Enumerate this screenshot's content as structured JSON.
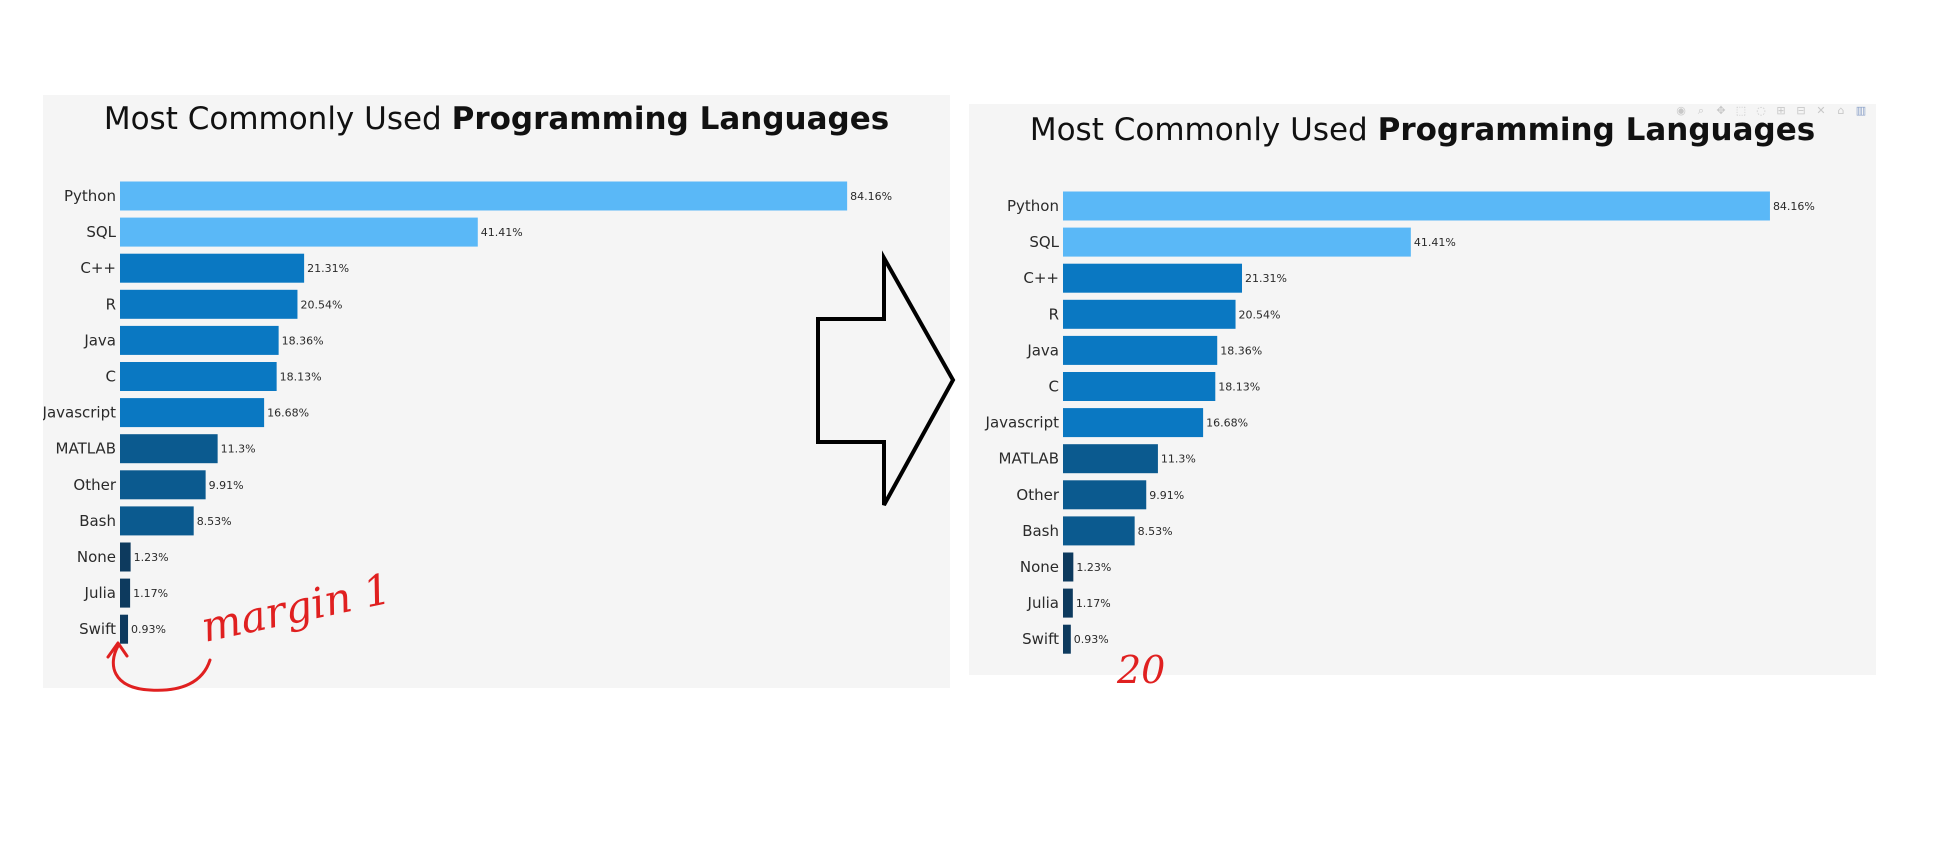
{
  "chart_data": [
    {
      "type": "bar",
      "orientation": "horizontal",
      "title_regular": "Most Commonly Used ",
      "title_bold": "Programming Languages",
      "categories": [
        "Python",
        "SQL",
        "C++",
        "R",
        "Java",
        "C",
        "Javascript",
        "MATLAB",
        "Other",
        "Bash",
        "None",
        "Julia",
        "Swift"
      ],
      "values": [
        84.16,
        41.41,
        21.31,
        20.54,
        18.36,
        18.13,
        16.68,
        11.3,
        9.91,
        8.53,
        1.23,
        1.17,
        0.93
      ],
      "labels": [
        "84.16%",
        "41.41%",
        "21.31%",
        "20.54%",
        "18.36%",
        "18.13%",
        "16.68%",
        "11.3%",
        "9.91%",
        "8.53%",
        "1.23%",
        "1.17%",
        "0.93%"
      ],
      "colors": [
        "#5ab8f7",
        "#5ab8f7",
        "#0a78c2",
        "#0a78c2",
        "#0a78c2",
        "#0a78c2",
        "#0a78c2",
        "#0b5a8f",
        "#0b5a8f",
        "#0b5a8f",
        "#0d3a5e",
        "#0d3a5e",
        "#0d3a5e"
      ],
      "xlim": [
        0,
        100
      ],
      "grid": false
    },
    {
      "type": "bar",
      "orientation": "horizontal",
      "title_regular": "Most Commonly Used ",
      "title_bold": "Programming Languages",
      "categories": [
        "Python",
        "SQL",
        "C++",
        "R",
        "Java",
        "C",
        "Javascript",
        "MATLAB",
        "Other",
        "Bash",
        "None",
        "Julia",
        "Swift"
      ],
      "values": [
        84.16,
        41.41,
        21.31,
        20.54,
        18.36,
        18.13,
        16.68,
        11.3,
        9.91,
        8.53,
        1.23,
        1.17,
        0.93
      ],
      "labels": [
        "84.16%",
        "41.41%",
        "21.31%",
        "20.54%",
        "18.36%",
        "18.13%",
        "16.68%",
        "11.3%",
        "9.91%",
        "8.53%",
        "1.23%",
        "1.17%",
        "0.93%"
      ],
      "colors": [
        "#5ab8f7",
        "#5ab8f7",
        "#0a78c2",
        "#0a78c2",
        "#0a78c2",
        "#0a78c2",
        "#0a78c2",
        "#0b5a8f",
        "#0b5a8f",
        "#0b5a8f",
        "#0d3a5e",
        "#0d3a5e",
        "#0d3a5e"
      ],
      "xlim": [
        0,
        100
      ],
      "grid": false
    }
  ],
  "modebar_icons": [
    "camera-icon",
    "zoom-icon",
    "pan-icon",
    "select-icon",
    "lasso-icon",
    "zoom-in-icon",
    "zoom-out-icon",
    "autoscale-icon",
    "home-icon",
    "plotly-logo-icon"
  ],
  "annotations": {
    "left_note": "margin 1",
    "right_note": "20",
    "ink_color": "#e02020",
    "arrow_color": "#000000"
  }
}
